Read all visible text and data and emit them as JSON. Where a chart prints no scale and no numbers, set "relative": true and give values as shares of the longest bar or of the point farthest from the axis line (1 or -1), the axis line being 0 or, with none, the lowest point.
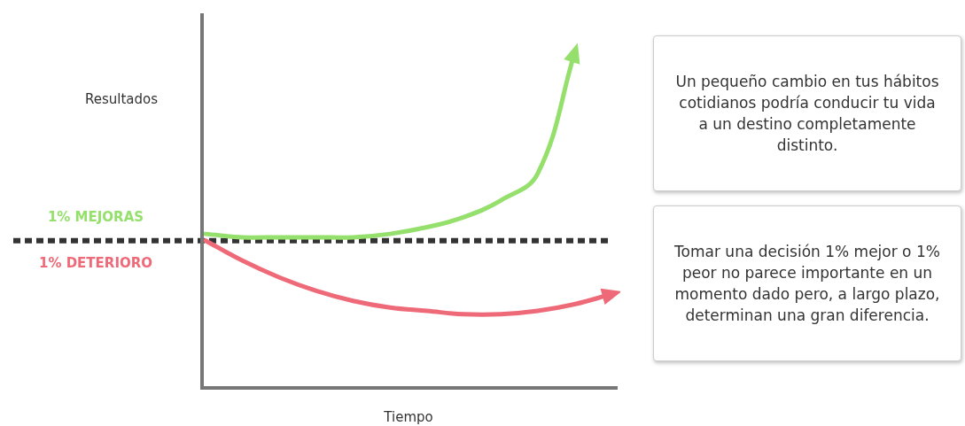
{
  "chart_data": {
    "type": "line",
    "relative": true,
    "ylabel": "Resultados",
    "xlabel": "Tiempo",
    "categories": [
      null,
      null,
      null,
      null,
      null,
      null,
      null,
      null,
      null,
      null,
      null,
      null
    ],
    "series": [
      {
        "name": "1% MEJORAS",
        "color": "#95e06c",
        "values": [
          0.46,
          0.45,
          0.45,
          0.45,
          0.45,
          0.46,
          0.48,
          0.51,
          0.56,
          0.64,
          1,
          null
        ]
      },
      {
        "name": "1% DETERIORO",
        "color": "#ef6a78",
        "values": [
          0.44,
          0.38,
          0.33,
          0.29,
          0.26,
          0.24,
          0.23,
          0.22,
          0.22,
          0.23,
          0.25,
          0.28
        ]
      }
    ],
    "ref_lines": [
      {
        "axis": "y",
        "value": 0.44,
        "color": "#333333",
        "line_style": "dashed"
      }
    ],
    "marker": "none",
    "legend": false,
    "annotations": [
      "Un pequeño cambio en tus hábitos cotidianos podría conducir tu vida a un destino completamente distinto.",
      "Tomar una decisión 1% mejor o 1% peor no parece importante en un momento dado pero, a largo plazo, determinan una gran diferencia."
    ]
  }
}
